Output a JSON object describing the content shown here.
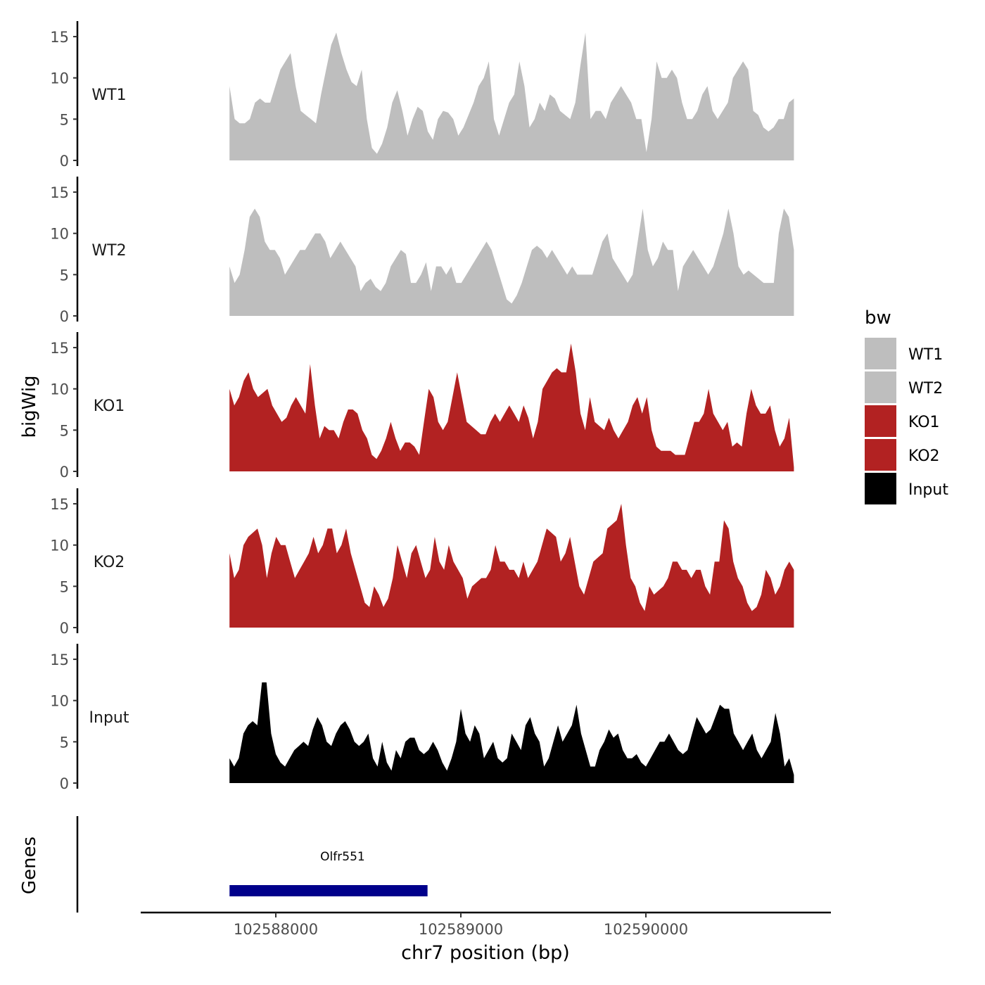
{
  "chart_data": {
    "type": "area",
    "ylabel": "bigWig",
    "xlabel": "chr7 position (bp)",
    "ylim": [
      0,
      16
    ],
    "yticks": [
      "0",
      "5",
      "10",
      "15"
    ],
    "xlim": [
      102587270,
      102591000
    ],
    "xticks": [
      {
        "value": 102588000,
        "label": "102588000"
      },
      {
        "value": 102589000,
        "label": "102589000"
      },
      {
        "value": 102590000,
        "label": "102590000"
      }
    ],
    "track_start": 102587750,
    "track_end": 102590800,
    "legend": {
      "title": "bw",
      "position": "right",
      "entries": [
        {
          "label": "WT1",
          "color": "#BEBEBE"
        },
        {
          "label": "WT2",
          "color": "#BEBEBE"
        },
        {
          "label": "KO1",
          "color": "#B22222"
        },
        {
          "label": "KO2",
          "color": "#B22222"
        },
        {
          "label": "Input",
          "color": "#000000"
        }
      ]
    },
    "series": [
      {
        "name": "WT1",
        "color": "#BEBEBE",
        "values": [
          9,
          5,
          4.5,
          4.5,
          5,
          7,
          7.5,
          7,
          7,
          9,
          11,
          12,
          13,
          9,
          6,
          5.5,
          5,
          4.5,
          8,
          11,
          14,
          15.5,
          13,
          11,
          9.5,
          9,
          11,
          5,
          1.5,
          0.8,
          2,
          4,
          7,
          8.5,
          6,
          3,
          5,
          6.5,
          6,
          3.5,
          2.5,
          5,
          6,
          5.8,
          5,
          3,
          4,
          5.5,
          7,
          9,
          10,
          12,
          5,
          3,
          5,
          7,
          8,
          12,
          9,
          4,
          5,
          7,
          6,
          8,
          7.5,
          6,
          5.5,
          5,
          7,
          11.5,
          15.5,
          5,
          6,
          6,
          5,
          7,
          8,
          9,
          8,
          7,
          5,
          5,
          1,
          5,
          12,
          10,
          10,
          11,
          10,
          7,
          5,
          5,
          6,
          8,
          9,
          6,
          5,
          6,
          7,
          10,
          11,
          12,
          11,
          6,
          5.5,
          4,
          3.5,
          4,
          5,
          5,
          7,
          7.5
        ]
      },
      {
        "name": "WT2",
        "color": "#BEBEBE",
        "values": [
          6,
          4,
          5,
          8,
          12,
          13,
          12,
          9,
          8,
          8,
          7,
          5,
          6,
          7,
          8,
          8,
          9,
          10,
          10,
          9,
          7,
          8,
          9,
          8,
          7,
          6,
          3,
          4,
          4.5,
          3.5,
          3,
          4,
          6,
          7,
          8,
          7.5,
          4,
          4,
          5,
          6.5,
          3,
          6,
          6,
          5,
          6,
          4,
          4,
          5,
          6,
          7,
          8,
          9,
          8,
          6,
          4,
          2,
          1.5,
          2.5,
          4,
          6,
          8,
          8.5,
          8,
          7,
          8,
          7,
          6,
          5,
          6,
          5,
          5,
          5,
          5,
          7,
          9,
          10,
          7,
          6,
          5,
          4,
          5,
          9,
          13,
          8,
          6,
          7,
          9,
          8,
          8,
          3,
          6,
          7,
          8,
          7,
          6,
          5,
          6,
          8,
          10,
          13,
          10,
          6,
          5,
          5.5,
          5,
          4.5,
          4,
          4,
          4,
          10,
          13,
          12,
          8
        ]
      },
      {
        "name": "KO1",
        "color": "#B22222",
        "values": [
          10,
          8,
          9,
          11,
          12,
          10,
          9,
          9.5,
          10,
          8,
          7,
          6,
          6.5,
          8,
          9,
          8,
          7,
          13,
          8,
          4,
          5.5,
          5,
          5,
          4,
          6,
          7.5,
          7.5,
          7,
          5,
          4,
          2,
          1.5,
          2.5,
          4,
          6,
          4,
          2.5,
          3.5,
          3.5,
          3,
          2,
          6,
          10,
          9,
          6,
          5,
          6,
          9,
          12,
          9,
          6,
          5.5,
          5,
          4.5,
          4.5,
          6,
          7,
          6,
          7,
          8,
          7,
          6,
          8,
          6.5,
          4,
          6,
          10,
          11,
          12,
          12.5,
          12,
          12,
          15.5,
          12,
          7,
          5,
          9,
          6,
          5.5,
          5,
          6.5,
          5,
          4,
          5,
          6,
          8,
          9,
          7,
          9,
          5,
          3,
          2.5,
          2.5,
          2.5,
          2,
          2,
          2,
          4,
          6,
          6,
          7,
          10,
          7,
          6,
          5,
          6,
          3,
          3.5,
          3,
          7,
          10,
          8,
          7,
          7,
          8,
          5,
          3,
          4,
          6.5,
          0.5
        ]
      },
      {
        "name": "KO2",
        "color": "#B22222",
        "values": [
          9,
          6,
          7,
          10,
          11,
          11.5,
          12,
          10,
          6,
          9,
          11,
          10,
          10,
          8,
          6,
          7,
          8,
          9,
          11,
          9,
          10,
          12,
          12,
          9,
          10,
          12,
          9,
          7,
          5,
          3,
          2.5,
          5,
          4,
          2.5,
          3.5,
          6,
          10,
          8,
          6,
          9,
          10,
          8,
          6,
          7,
          11,
          8,
          7,
          10,
          8,
          7,
          6,
          3.5,
          5,
          5.5,
          6,
          6,
          7,
          10,
          8,
          8,
          7,
          7,
          6,
          8,
          6,
          7,
          8,
          10,
          12,
          11.5,
          11,
          8,
          9,
          11,
          8,
          5,
          4,
          6,
          8,
          8.5,
          9,
          12,
          12.5,
          13,
          15,
          10,
          6,
          5,
          3,
          2,
          5,
          4,
          4.5,
          5,
          6,
          8,
          8,
          7,
          7,
          6,
          7,
          7,
          5,
          4,
          8,
          8,
          13,
          12,
          8,
          6,
          5,
          3,
          2,
          2.5,
          4,
          7,
          6,
          4,
          5,
          7,
          8,
          7
        ]
      },
      {
        "name": "Input",
        "color": "#000000",
        "values": [
          3,
          2,
          3,
          6,
          7,
          7.5,
          7,
          12.2,
          12.2,
          6,
          3.5,
          2.5,
          2,
          3,
          4,
          4.5,
          5,
          4.5,
          6.5,
          8,
          7,
          5,
          4.5,
          6,
          7,
          7.5,
          6.5,
          5,
          4.5,
          5,
          6,
          3,
          2,
          5,
          2.5,
          1.5,
          4,
          3,
          5,
          5.5,
          5.5,
          4,
          3.5,
          4,
          5,
          4,
          2.5,
          1.5,
          3,
          5,
          9,
          6,
          5,
          7,
          6,
          3,
          4,
          5,
          3,
          2.5,
          3,
          6,
          5,
          4,
          7,
          8,
          6,
          5,
          2,
          3,
          5,
          7,
          5,
          6,
          7,
          9.5,
          6,
          4,
          2,
          2,
          4,
          5,
          6.5,
          5.5,
          6,
          4,
          3,
          3,
          3.5,
          2.5,
          2,
          3,
          4,
          5,
          5,
          6,
          5,
          4,
          3.5,
          4,
          6,
          8,
          7,
          6,
          6.5,
          8,
          9.5,
          9,
          9,
          6,
          5,
          4,
          5,
          6,
          4,
          3,
          4,
          5,
          8.5,
          6,
          2,
          3,
          1
        ]
      }
    ]
  },
  "genes_panel": {
    "label": "Genes",
    "genes": [
      {
        "name": "Olfr551",
        "start": 102587750,
        "end": 102588820,
        "color": "#00008B"
      }
    ]
  }
}
